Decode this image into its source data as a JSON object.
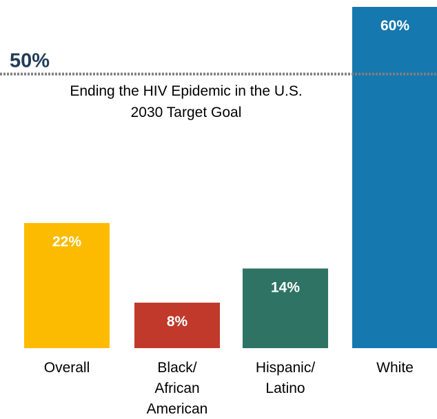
{
  "chart_data": {
    "type": "bar",
    "categories": [
      "Overall",
      "Black/African American",
      "Hispanic/Latino",
      "White"
    ],
    "category_lines": [
      [
        "Overall"
      ],
      [
        "Black/",
        "African",
        "American"
      ],
      [
        "Hispanic/",
        "Latino"
      ],
      [
        "White"
      ]
    ],
    "values": [
      22,
      8,
      14,
      60
    ],
    "value_labels": [
      "22%",
      "8%",
      "14%",
      "60%"
    ],
    "colors": [
      "#FDBB00",
      "#C0392B",
      "#2E7364",
      "#1578AE"
    ],
    "ylim": [
      0,
      60
    ],
    "grid": false,
    "target": {
      "value": 50,
      "label": "50%",
      "annotation": [
        "Ending the HIV Epidemic in the U.S.",
        "2030 Target Goal"
      ],
      "line_color": "#7F7F7F",
      "label_color": "#1F3B57"
    },
    "title": "",
    "xlabel": "",
    "ylabel": ""
  }
}
